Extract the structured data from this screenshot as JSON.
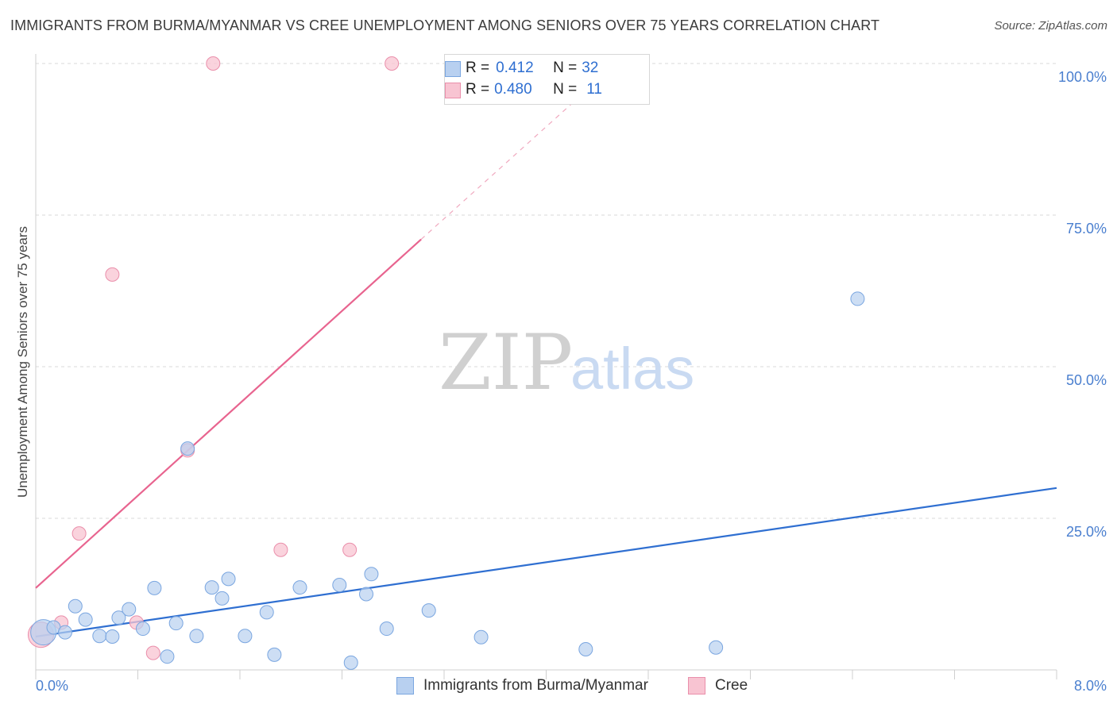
{
  "title": "IMMIGRANTS FROM BURMA/MYANMAR VS CREE UNEMPLOYMENT AMONG SENIORS OVER 75 YEARS CORRELATION CHART",
  "source": "Source: ZipAtlas.com",
  "watermark": {
    "zip": "ZIP",
    "atlas": "atlas"
  },
  "colors": {
    "blue_fill": "#b8d0f0",
    "blue_stroke": "#7aa6e0",
    "blue_line": "#2f6fd1",
    "pink_fill": "#f8c4d2",
    "pink_stroke": "#ea8fab",
    "pink_line": "#e8648f",
    "grid": "#d9d9d9",
    "tick_text": "#4a7fcf"
  },
  "legend": {
    "rows": [
      {
        "r_label": "R = ",
        "r_value": "0.412",
        "n_label": "N = ",
        "n_value": "32"
      },
      {
        "r_label": "R = ",
        "r_value": "0.480",
        "n_label": "N = ",
        "n_value": "11"
      }
    ]
  },
  "bottom_legend": [
    "Immigrants from Burma/Myanmar",
    "Cree"
  ],
  "chart_data": {
    "type": "scatter",
    "title": "IMMIGRANTS FROM BURMA/MYANMAR VS CREE UNEMPLOYMENT AMONG SENIORS OVER 75 YEARS CORRELATION CHART",
    "xlabel": "",
    "ylabel": "Unemployment Among Seniors over 75 years",
    "xlim": [
      0,
      8
    ],
    "ylim": [
      0,
      100
    ],
    "x_tick_labels": [
      "0.0%",
      "8.0%"
    ],
    "y_ticks": [
      25,
      50,
      75,
      100
    ],
    "y_tick_labels": [
      "25.0%",
      "50.0%",
      "75.0%",
      "100.0%"
    ],
    "grid": true,
    "series": [
      {
        "name": "Immigrants from Burma/Myanmar",
        "color": "#b8d0f0",
        "r": 0.412,
        "n": 32,
        "trend": {
          "x": [
            0,
            8
          ],
          "y": [
            5.5,
            30.0
          ]
        },
        "points": [
          {
            "x": 0.06,
            "y": 6.2,
            "big": true
          },
          {
            "x": 0.14,
            "y": 7.0
          },
          {
            "x": 0.23,
            "y": 6.2
          },
          {
            "x": 0.31,
            "y": 10.5
          },
          {
            "x": 0.39,
            "y": 8.3
          },
          {
            "x": 0.5,
            "y": 5.6
          },
          {
            "x": 0.6,
            "y": 5.5
          },
          {
            "x": 0.65,
            "y": 8.6
          },
          {
            "x": 0.73,
            "y": 10.0
          },
          {
            "x": 0.84,
            "y": 6.8
          },
          {
            "x": 0.93,
            "y": 13.5
          },
          {
            "x": 1.03,
            "y": 2.2
          },
          {
            "x": 1.1,
            "y": 7.7
          },
          {
            "x": 1.19,
            "y": 36.5
          },
          {
            "x": 1.26,
            "y": 5.6
          },
          {
            "x": 1.38,
            "y": 13.6
          },
          {
            "x": 1.46,
            "y": 11.8
          },
          {
            "x": 1.51,
            "y": 15.0
          },
          {
            "x": 1.64,
            "y": 5.6
          },
          {
            "x": 1.81,
            "y": 9.5
          },
          {
            "x": 1.87,
            "y": 2.5
          },
          {
            "x": 2.07,
            "y": 13.6
          },
          {
            "x": 2.38,
            "y": 14.0
          },
          {
            "x": 2.47,
            "y": 1.2
          },
          {
            "x": 2.59,
            "y": 12.5
          },
          {
            "x": 2.63,
            "y": 15.8
          },
          {
            "x": 2.75,
            "y": 6.8
          },
          {
            "x": 3.08,
            "y": 9.8
          },
          {
            "x": 3.49,
            "y": 5.4
          },
          {
            "x": 4.31,
            "y": 3.4
          },
          {
            "x": 5.33,
            "y": 3.7
          },
          {
            "x": 6.44,
            "y": 61.2
          }
        ]
      },
      {
        "name": "Cree",
        "color": "#f8c4d2",
        "r": 0.48,
        "n": 11,
        "trend": {
          "x": [
            0,
            3.02
          ],
          "y": [
            13.5,
            71.0
          ]
        },
        "trend_dashed": {
          "x": [
            3.02,
            4.55
          ],
          "y": [
            71.0,
            100.0
          ]
        },
        "points": [
          {
            "x": 0.04,
            "y": 5.8,
            "big": true
          },
          {
            "x": 0.2,
            "y": 7.8
          },
          {
            "x": 0.34,
            "y": 22.5
          },
          {
            "x": 0.6,
            "y": 65.2
          },
          {
            "x": 0.79,
            "y": 7.8
          },
          {
            "x": 0.92,
            "y": 2.8
          },
          {
            "x": 1.19,
            "y": 36.2
          },
          {
            "x": 1.39,
            "y": 100.0
          },
          {
            "x": 1.92,
            "y": 19.8
          },
          {
            "x": 2.46,
            "y": 19.8
          },
          {
            "x": 2.79,
            "y": 100.0
          }
        ]
      }
    ]
  }
}
